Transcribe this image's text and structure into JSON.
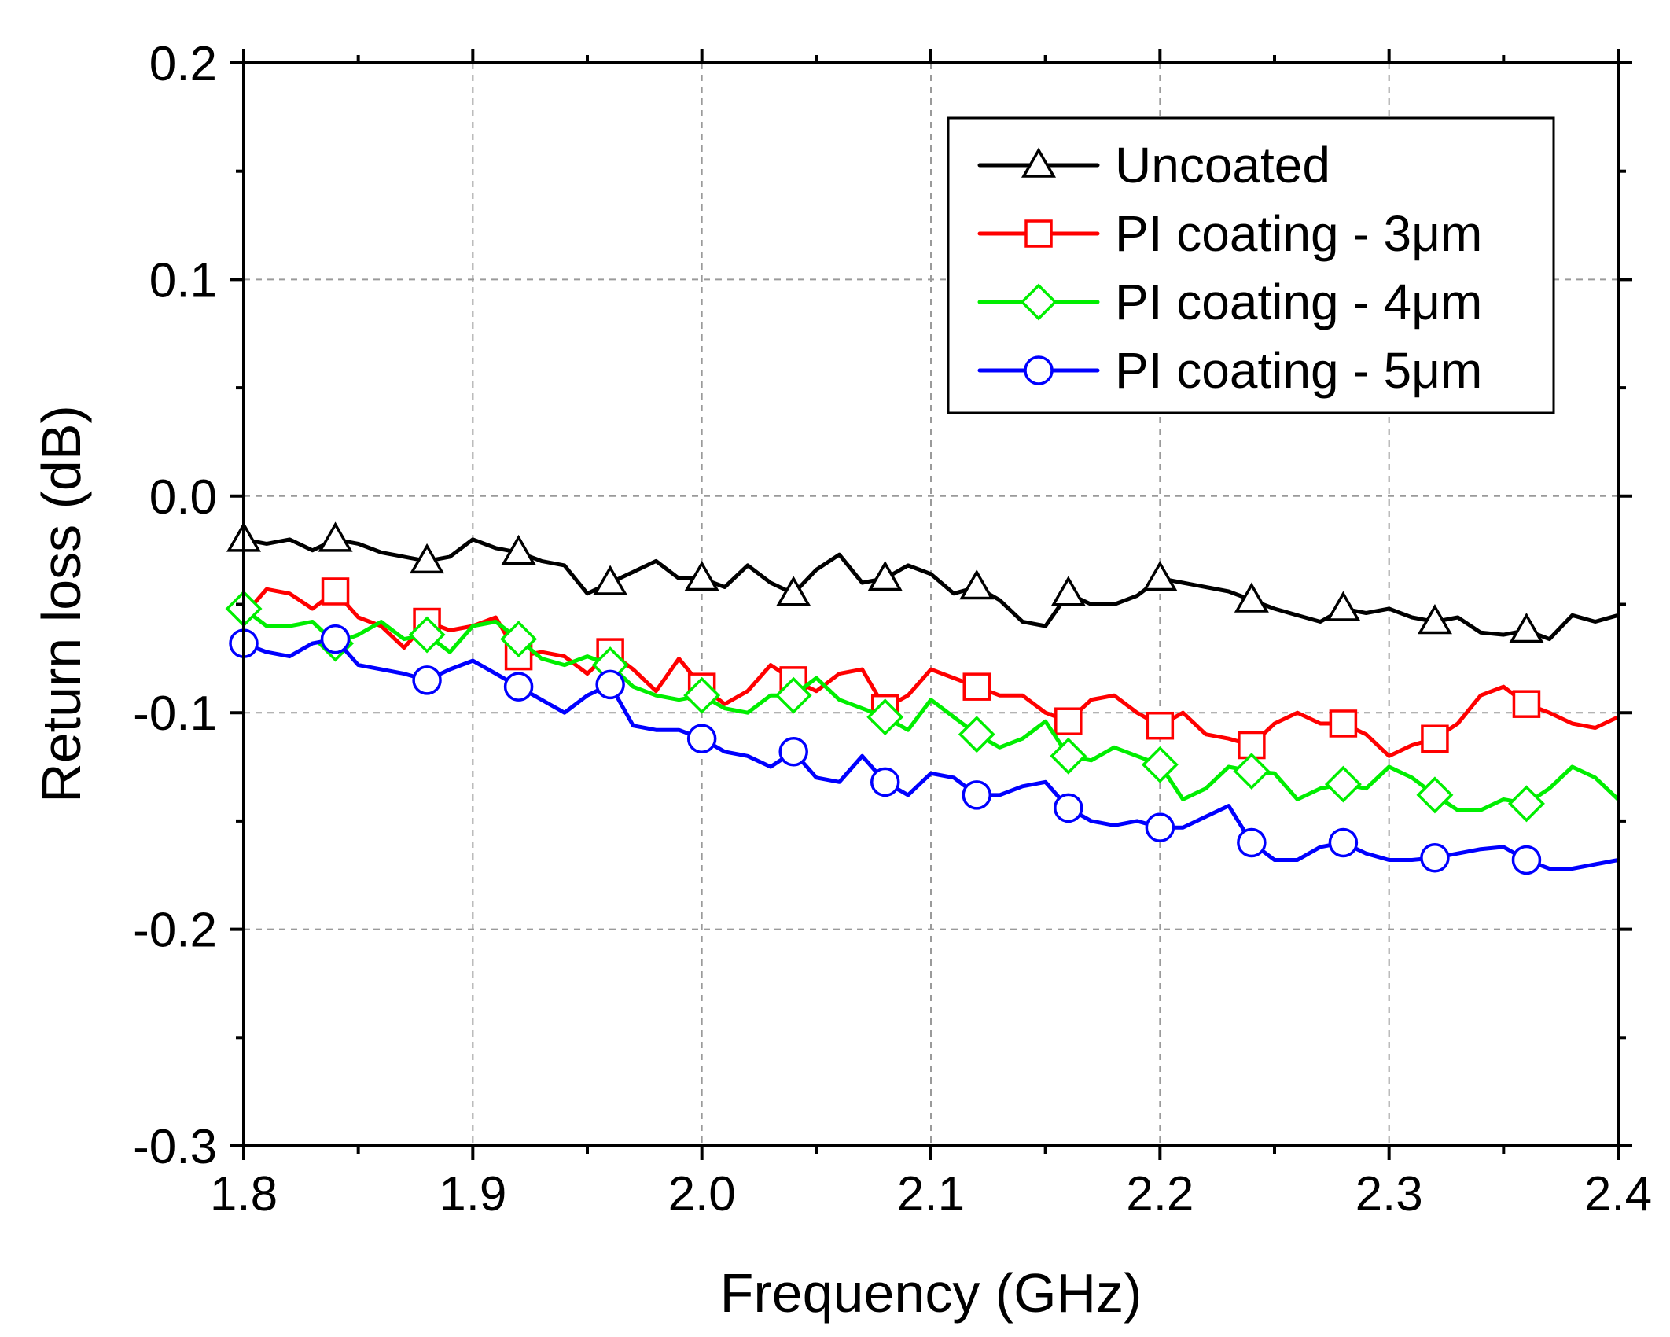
{
  "chart_data": {
    "type": "line",
    "xlabel": "Frequency (GHz)",
    "ylabel": "Return loss (dB)",
    "xlim": [
      1.8,
      2.4
    ],
    "ylim": [
      -0.3,
      0.2
    ],
    "xticks": [
      "1.8",
      "1.9",
      "2.0",
      "2.1",
      "2.2",
      "2.3",
      "2.4"
    ],
    "yticks": [
      "-0.3",
      "-0.2",
      "-0.1",
      "0.0",
      "0.1",
      "0.2"
    ],
    "grid": true,
    "legend_position": "top-right",
    "series": [
      {
        "name": "Uncoated",
        "color": "#000000",
        "marker": "triangle",
        "x": [
          1.8,
          1.81,
          1.82,
          1.83,
          1.84,
          1.85,
          1.86,
          1.87,
          1.88,
          1.89,
          1.9,
          1.91,
          1.92,
          1.93,
          1.94,
          1.95,
          1.96,
          1.97,
          1.98,
          1.99,
          2.0,
          2.01,
          2.02,
          2.03,
          2.04,
          2.05,
          2.06,
          2.07,
          2.08,
          2.09,
          2.1,
          2.11,
          2.12,
          2.13,
          2.14,
          2.15,
          2.16,
          2.17,
          2.18,
          2.19,
          2.2,
          2.21,
          2.22,
          2.23,
          2.24,
          2.25,
          2.26,
          2.27,
          2.28,
          2.29,
          2.3,
          2.31,
          2.32,
          2.33,
          2.34,
          2.35,
          2.36,
          2.37,
          2.38,
          2.39,
          2.4
        ],
        "values": [
          -0.02,
          -0.022,
          -0.02,
          -0.025,
          -0.02,
          -0.022,
          -0.026,
          -0.028,
          -0.03,
          -0.028,
          -0.02,
          -0.024,
          -0.026,
          -0.03,
          -0.032,
          -0.045,
          -0.04,
          -0.035,
          -0.03,
          -0.038,
          -0.038,
          -0.042,
          -0.032,
          -0.04,
          -0.045,
          -0.034,
          -0.027,
          -0.04,
          -0.038,
          -0.032,
          -0.036,
          -0.045,
          -0.042,
          -0.048,
          -0.058,
          -0.06,
          -0.045,
          -0.05,
          -0.05,
          -0.046,
          -0.038,
          -0.04,
          -0.042,
          -0.044,
          -0.048,
          -0.052,
          -0.055,
          -0.058,
          -0.052,
          -0.054,
          -0.052,
          -0.056,
          -0.058,
          -0.056,
          -0.063,
          -0.064,
          -0.062,
          -0.066,
          -0.055,
          -0.058,
          -0.055
        ],
        "marker_x": [
          1.8,
          1.84,
          1.88,
          1.92,
          1.96,
          2.0,
          2.04,
          2.08,
          2.12,
          2.16,
          2.2,
          2.24,
          2.28,
          2.32,
          2.36
        ]
      },
      {
        "name": "PI coating - 3μm",
        "color": "#ff0000",
        "marker": "square",
        "x": [
          1.8,
          1.81,
          1.82,
          1.83,
          1.84,
          1.85,
          1.86,
          1.87,
          1.88,
          1.89,
          1.9,
          1.91,
          1.92,
          1.93,
          1.94,
          1.95,
          1.96,
          1.97,
          1.98,
          1.99,
          2.0,
          2.01,
          2.02,
          2.03,
          2.04,
          2.05,
          2.06,
          2.07,
          2.08,
          2.09,
          2.1,
          2.11,
          2.12,
          2.13,
          2.14,
          2.15,
          2.16,
          2.17,
          2.18,
          2.19,
          2.2,
          2.21,
          2.22,
          2.23,
          2.24,
          2.25,
          2.26,
          2.27,
          2.28,
          2.29,
          2.3,
          2.31,
          2.32,
          2.33,
          2.34,
          2.35,
          2.36,
          2.37,
          2.38,
          2.39,
          2.4
        ],
        "values": [
          -0.055,
          -0.043,
          -0.045,
          -0.052,
          -0.044,
          -0.056,
          -0.06,
          -0.07,
          -0.058,
          -0.062,
          -0.06,
          -0.056,
          -0.074,
          -0.072,
          -0.074,
          -0.082,
          -0.072,
          -0.08,
          -0.09,
          -0.075,
          -0.088,
          -0.096,
          -0.09,
          -0.078,
          -0.085,
          -0.09,
          -0.082,
          -0.08,
          -0.098,
          -0.092,
          -0.08,
          -0.084,
          -0.088,
          -0.092,
          -0.092,
          -0.1,
          -0.104,
          -0.094,
          -0.092,
          -0.1,
          -0.106,
          -0.1,
          -0.11,
          -0.112,
          -0.115,
          -0.105,
          -0.1,
          -0.105,
          -0.105,
          -0.11,
          -0.12,
          -0.115,
          -0.112,
          -0.105,
          -0.092,
          -0.088,
          -0.096,
          -0.1,
          -0.105,
          -0.107,
          -0.102
        ],
        "marker_x": [
          1.84,
          1.88,
          1.92,
          1.96,
          2.0,
          2.04,
          2.08,
          2.12,
          2.16,
          2.2,
          2.24,
          2.28,
          2.32,
          2.36
        ]
      },
      {
        "name": "PI coating - 4μm",
        "color": "#00ee00",
        "marker": "diamond",
        "x": [
          1.8,
          1.81,
          1.82,
          1.83,
          1.84,
          1.85,
          1.86,
          1.87,
          1.88,
          1.89,
          1.9,
          1.91,
          1.92,
          1.93,
          1.94,
          1.95,
          1.96,
          1.97,
          1.98,
          1.99,
          2.0,
          2.01,
          2.02,
          2.03,
          2.04,
          2.05,
          2.06,
          2.07,
          2.08,
          2.09,
          2.1,
          2.11,
          2.12,
          2.13,
          2.14,
          2.15,
          2.16,
          2.17,
          2.18,
          2.19,
          2.2,
          2.21,
          2.22,
          2.23,
          2.24,
          2.25,
          2.26,
          2.27,
          2.28,
          2.29,
          2.3,
          2.31,
          2.32,
          2.33,
          2.34,
          2.35,
          2.36,
          2.37,
          2.38,
          2.39,
          2.4
        ],
        "values": [
          -0.052,
          -0.06,
          -0.06,
          -0.058,
          -0.068,
          -0.064,
          -0.058,
          -0.066,
          -0.064,
          -0.072,
          -0.06,
          -0.058,
          -0.066,
          -0.075,
          -0.078,
          -0.074,
          -0.078,
          -0.088,
          -0.092,
          -0.094,
          -0.092,
          -0.098,
          -0.1,
          -0.092,
          -0.092,
          -0.084,
          -0.094,
          -0.098,
          -0.102,
          -0.108,
          -0.094,
          -0.102,
          -0.11,
          -0.116,
          -0.112,
          -0.104,
          -0.12,
          -0.122,
          -0.116,
          -0.12,
          -0.124,
          -0.14,
          -0.135,
          -0.125,
          -0.127,
          -0.128,
          -0.14,
          -0.135,
          -0.133,
          -0.135,
          -0.125,
          -0.13,
          -0.138,
          -0.145,
          -0.145,
          -0.14,
          -0.142,
          -0.135,
          -0.125,
          -0.13,
          -0.14
        ],
        "marker_x": [
          1.8,
          1.84,
          1.88,
          1.92,
          1.96,
          2.0,
          2.04,
          2.08,
          2.12,
          2.16,
          2.2,
          2.24,
          2.28,
          2.32,
          2.36
        ]
      },
      {
        "name": "PI coating - 5μm",
        "color": "#0000ff",
        "marker": "circle",
        "x": [
          1.8,
          1.81,
          1.82,
          1.83,
          1.84,
          1.85,
          1.86,
          1.87,
          1.88,
          1.89,
          1.9,
          1.91,
          1.92,
          1.93,
          1.94,
          1.95,
          1.96,
          1.97,
          1.98,
          1.99,
          2.0,
          2.01,
          2.02,
          2.03,
          2.04,
          2.05,
          2.06,
          2.07,
          2.08,
          2.09,
          2.1,
          2.11,
          2.12,
          2.13,
          2.14,
          2.15,
          2.16,
          2.17,
          2.18,
          2.19,
          2.2,
          2.21,
          2.22,
          2.23,
          2.24,
          2.25,
          2.26,
          2.27,
          2.28,
          2.29,
          2.3,
          2.31,
          2.32,
          2.33,
          2.34,
          2.35,
          2.36,
          2.37,
          2.38,
          2.39,
          2.4
        ],
        "values": [
          -0.068,
          -0.072,
          -0.074,
          -0.068,
          -0.066,
          -0.078,
          -0.08,
          -0.082,
          -0.085,
          -0.08,
          -0.076,
          -0.082,
          -0.088,
          -0.094,
          -0.1,
          -0.092,
          -0.087,
          -0.106,
          -0.108,
          -0.108,
          -0.112,
          -0.118,
          -0.12,
          -0.125,
          -0.118,
          -0.13,
          -0.132,
          -0.12,
          -0.132,
          -0.138,
          -0.128,
          -0.13,
          -0.138,
          -0.138,
          -0.134,
          -0.132,
          -0.144,
          -0.15,
          -0.152,
          -0.15,
          -0.153,
          -0.153,
          -0.148,
          -0.143,
          -0.16,
          -0.168,
          -0.168,
          -0.162,
          -0.16,
          -0.165,
          -0.168,
          -0.168,
          -0.167,
          -0.165,
          -0.163,
          -0.162,
          -0.168,
          -0.172,
          -0.172,
          -0.17,
          -0.168
        ],
        "marker_x": [
          1.8,
          1.84,
          1.88,
          1.92,
          1.96,
          2.0,
          2.04,
          2.08,
          2.12,
          2.16,
          2.2,
          2.24,
          2.28,
          2.32,
          2.36
        ]
      }
    ]
  }
}
